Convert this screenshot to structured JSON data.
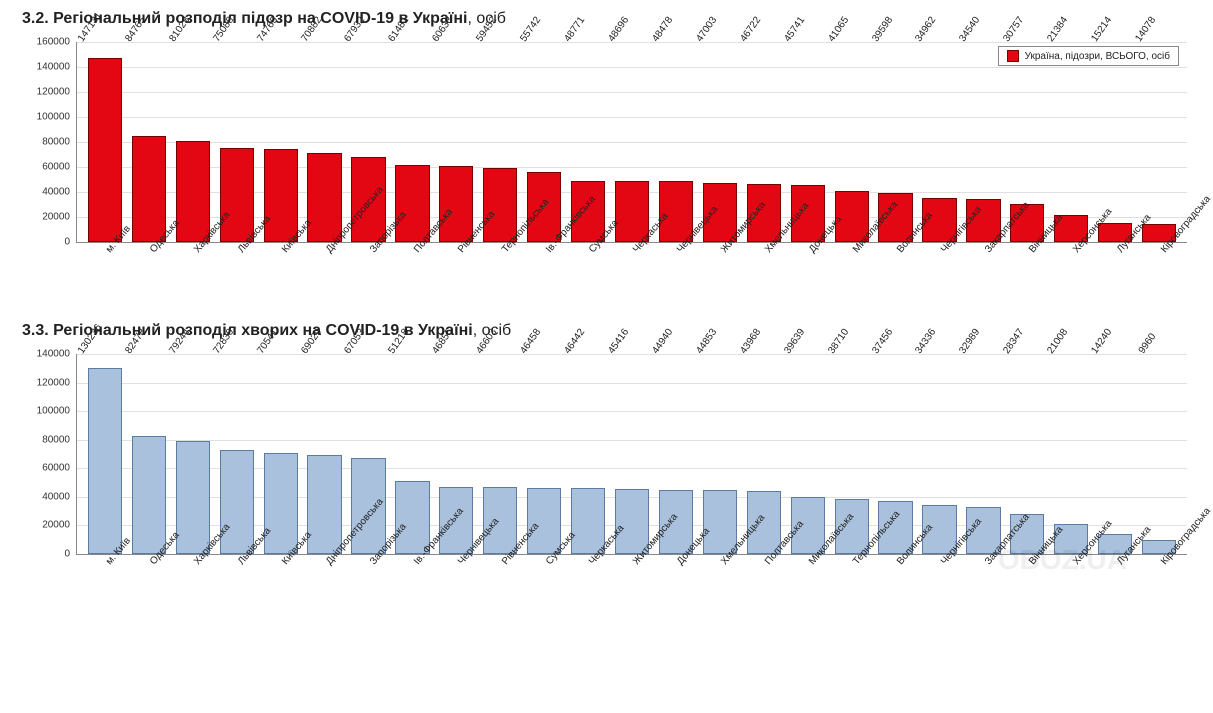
{
  "chart1": {
    "type": "bar",
    "section_no": "3.2.",
    "title_bold": "Регіональний розподіл підозр на COVID-19 в Україні",
    "title_light": ", осіб",
    "legend_label": "Україна, підозри, ВСЬОГО, осіб",
    "bar_color": "#e30613",
    "border_color": "#7a0000",
    "background_color": "#ffffff",
    "grid_color": "#e0e0e0",
    "label_fontsize": 10,
    "ymax": 160000,
    "ytick_step": 20000,
    "categories": [
      "м. Київ",
      "Одеська",
      "Харківська",
      "Львівська",
      "Київська",
      "Дніпропетровська",
      "Запорізька",
      "Полтавська",
      "Рівненська",
      "Тернопільська",
      "Ів.-Франківська",
      "Сумська",
      "Черкаська",
      "Чернівецька",
      "Житомирська",
      "Хмельницька",
      "Донецька",
      "Миколаївська",
      "Волинська",
      "Чернігівська",
      "Закарпатська",
      "Вінницька",
      "Херсонська",
      "Луганська",
      "Кіровоградська"
    ],
    "values": [
      147131,
      84765,
      81028,
      75088,
      74765,
      70882,
      67932,
      61481,
      60633,
      59452,
      55742,
      48771,
      48696,
      48478,
      47003,
      46722,
      45741,
      41065,
      39598,
      34962,
      34540,
      30757,
      21384,
      15214,
      14078
    ]
  },
  "chart2": {
    "type": "bar",
    "section_no": "3.3.",
    "title_bold": "Регіональний розподіл хворих на COVID-19 в Україні",
    "title_light": ", осіб",
    "bar_color": "#aac1dd",
    "border_color": "#5b7ba3",
    "background_color": "#ffffff",
    "grid_color": "#e0e0e0",
    "label_fontsize": 10,
    "ymax": 140000,
    "ytick_step": 20000,
    "categories": [
      "м. Київ",
      "Одеська",
      "Харківська",
      "Львівська",
      "Київська",
      "Дніпропетровська",
      "Запорізька",
      "Ів.-Франківська",
      "Чернівецька",
      "Рівненська",
      "Сумська",
      "Черкаська",
      "Житомирська",
      "Донецька",
      "Хмельницька",
      "Полтавська",
      "Миколаївська",
      "Тернопільська",
      "Волинська",
      "Чернігівська",
      "Закарпатська",
      "Вінницька",
      "Херсонська",
      "Луганська",
      "Кіровоградська"
    ],
    "values": [
      130236,
      82478,
      79244,
      72830,
      70541,
      69029,
      67053,
      51218,
      46855,
      46603,
      46458,
      46442,
      45416,
      44940,
      44853,
      43968,
      39639,
      38710,
      37456,
      34336,
      32989,
      28347,
      21008,
      14240,
      9960
    ]
  },
  "watermark": "OBOZ.UA"
}
